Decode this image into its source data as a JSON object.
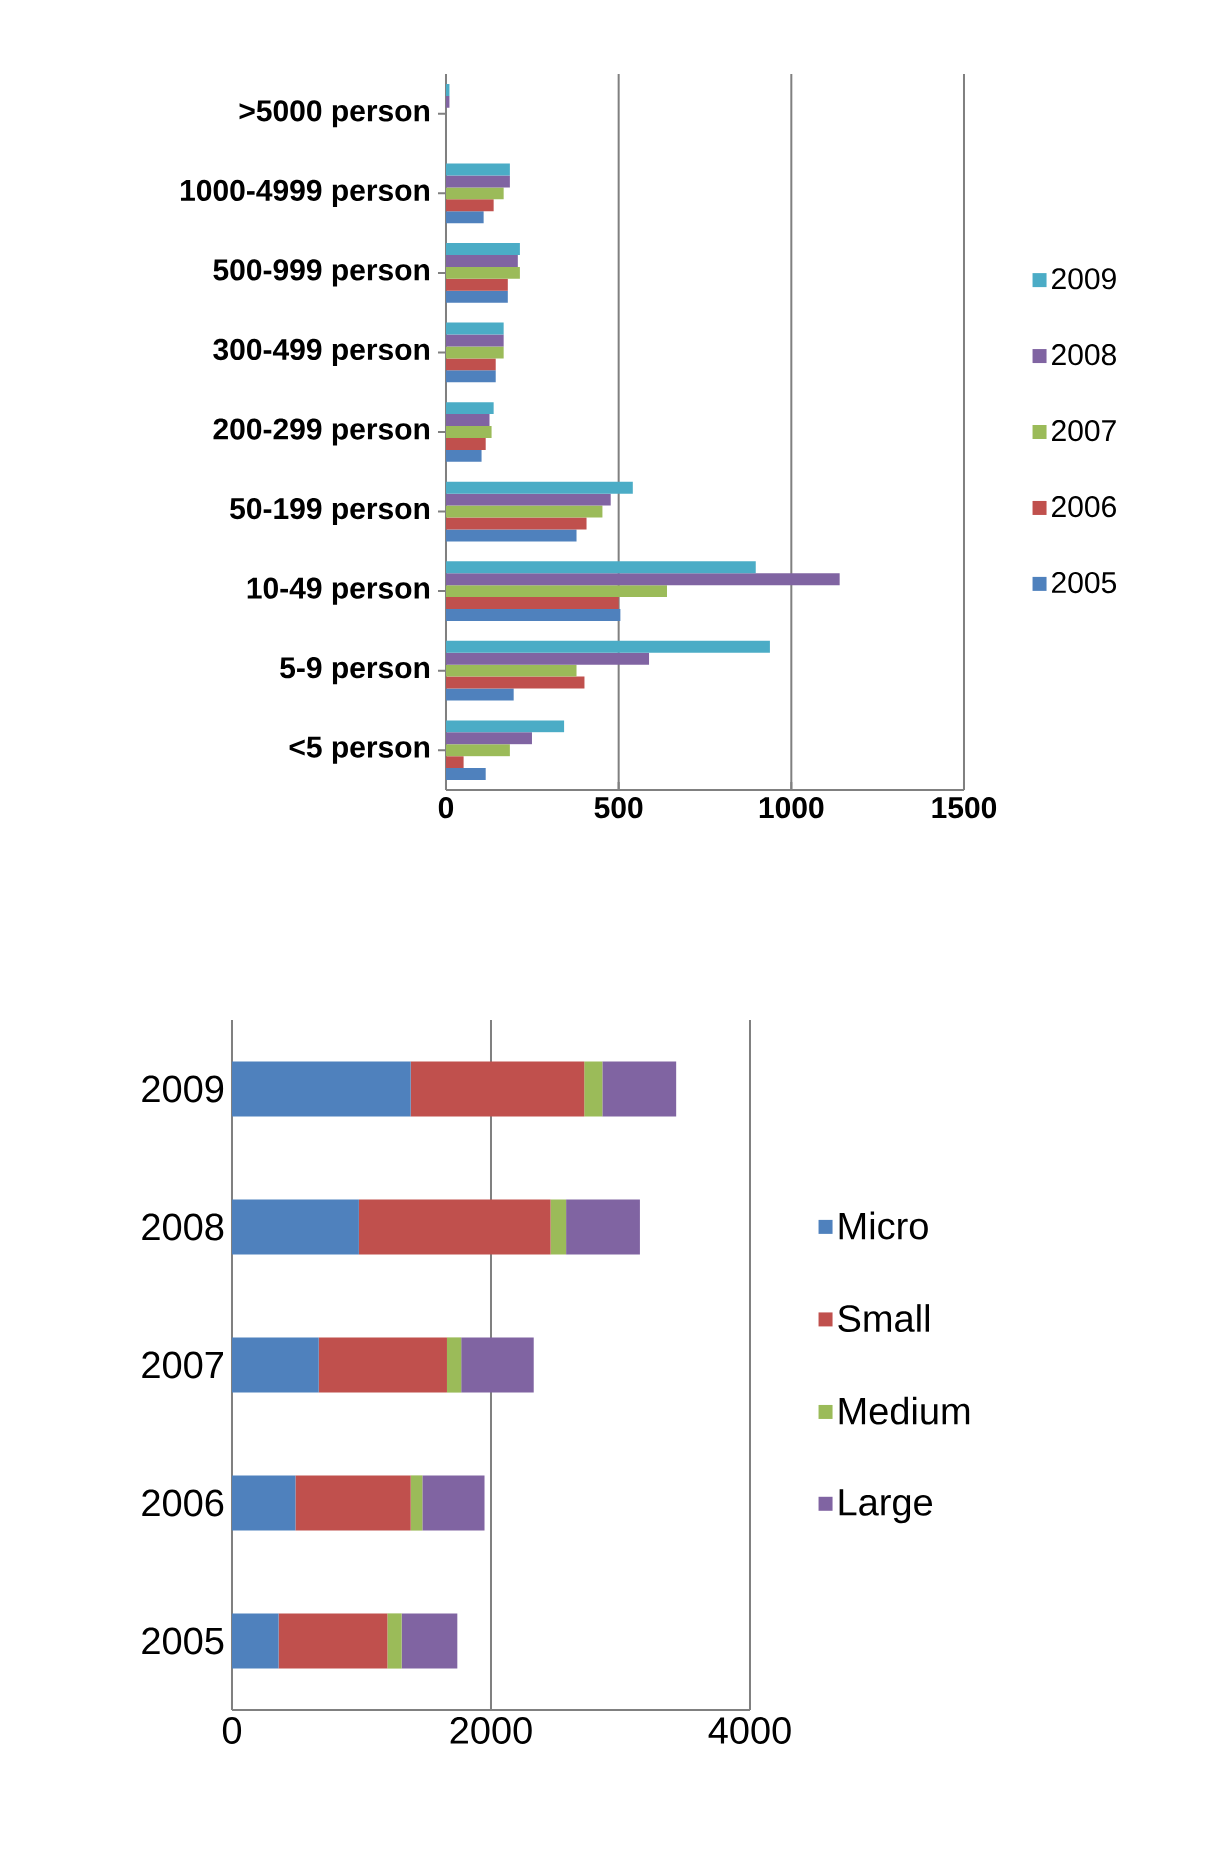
{
  "chart_data": [
    {
      "type": "bar",
      "orientation": "horizontal",
      "categories": [
        ">5000 person",
        "1000-4999 person",
        "500-999 person",
        "300-499 person",
        "200-299 person",
        "50-199 person",
        "10-49 person",
        "5-9 person",
        "<5 person"
      ],
      "series": [
        {
          "name": "2005",
          "color": "#4f81bd",
          "values": [
            0,
            109,
            179,
            144,
            103,
            378,
            505,
            196,
            115
          ]
        },
        {
          "name": "2006",
          "color": "#c0504d",
          "values": [
            0,
            138,
            179,
            144,
            115,
            407,
            500,
            401,
            51
          ]
        },
        {
          "name": "2007",
          "color": "#9bbb59",
          "values": [
            0,
            167,
            214,
            167,
            132,
            453,
            640,
            378,
            185
          ]
        },
        {
          "name": "2008",
          "color": "#8064a2",
          "values": [
            10,
            185,
            208,
            167,
            126,
            477,
            1140,
            588,
            249
          ]
        },
        {
          "name": "2009",
          "color": "#4bacc6",
          "values": [
            10,
            185,
            214,
            167,
            138,
            541,
            897,
            938,
            342
          ]
        }
      ],
      "xlim": [
        0,
        1500
      ],
      "xticks": [
        0,
        500,
        1000,
        1500
      ],
      "grid": "x",
      "legend": "right"
    },
    {
      "type": "bar",
      "orientation": "horizontal",
      "stacked": true,
      "categories": [
        "2009",
        "2008",
        "2007",
        "2006",
        "2005"
      ],
      "series": [
        {
          "name": "Micro",
          "color": "#4f81bd",
          "values": [
            1380,
            980,
            670,
            490,
            360
          ]
        },
        {
          "name": "Small",
          "color": "#c0504d",
          "values": [
            1340,
            1480,
            990,
            890,
            840
          ]
        },
        {
          "name": "Medium",
          "color": "#9bbb59",
          "values": [
            140,
            120,
            110,
            90,
            110
          ]
        },
        {
          "name": "Large",
          "color": "#8064a2",
          "values": [
            570,
            570,
            560,
            480,
            430
          ]
        }
      ],
      "xlim": [
        0,
        4000
      ],
      "xticks": [
        0,
        2000,
        4000
      ],
      "grid": "x",
      "legend": "right"
    }
  ]
}
